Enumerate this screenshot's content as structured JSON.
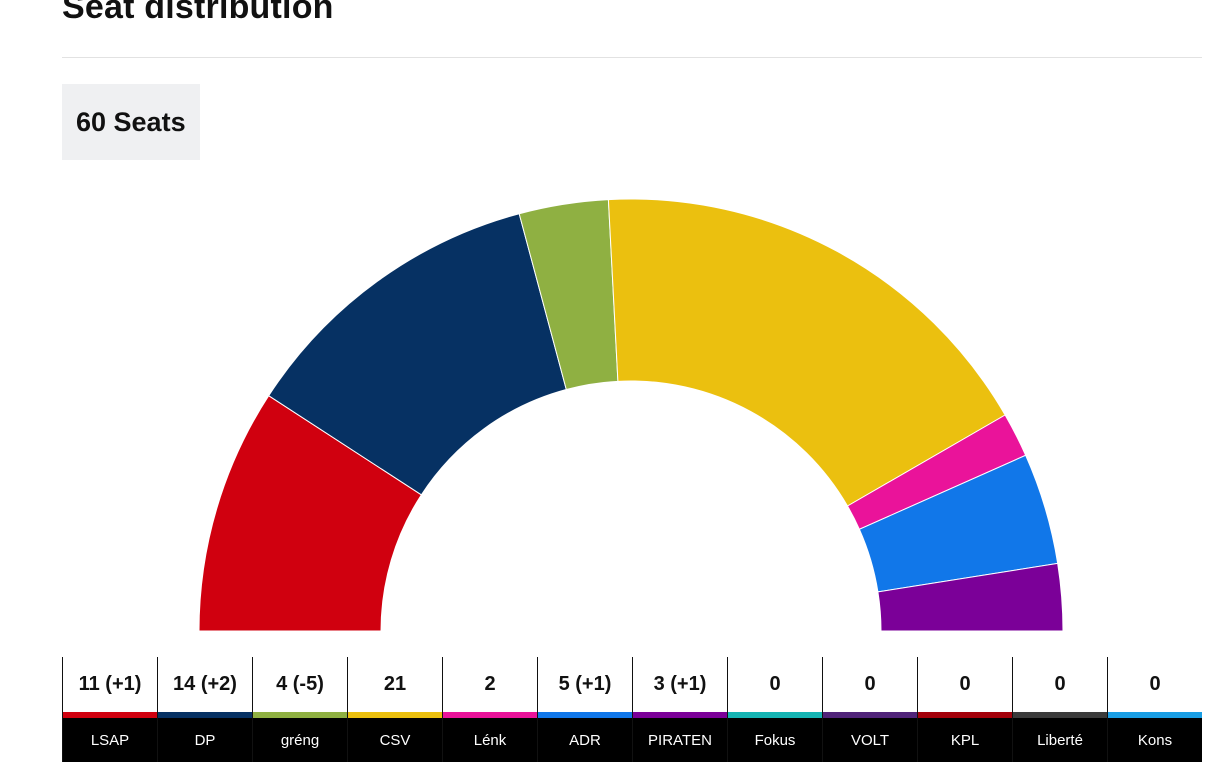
{
  "page": {
    "title": "Seat distribution",
    "seats_label": "60 Seats"
  },
  "chart_data": {
    "type": "hemicycle",
    "title": "Seat distribution",
    "total_seats": 60,
    "parties": [
      {
        "name": "LSAP",
        "seats": 11,
        "display": "11 (+1)",
        "color": "#d0000f"
      },
      {
        "name": "DP",
        "seats": 14,
        "display": "14 (+2)",
        "color": "#063163"
      },
      {
        "name": "gréng",
        "seats": 4,
        "display": "4 (-5)",
        "color": "#8fb042"
      },
      {
        "name": "CSV",
        "seats": 21,
        "display": "21",
        "color": "#ebc00f"
      },
      {
        "name": "Lénk",
        "seats": 2,
        "display": "2",
        "color": "#ea139a"
      },
      {
        "name": "ADR",
        "seats": 5,
        "display": "5 (+1)",
        "color": "#1177e9"
      },
      {
        "name": "PIRATEN",
        "seats": 3,
        "display": "3 (+1)",
        "color": "#7b0098"
      },
      {
        "name": "Fokus",
        "seats": 0,
        "display": "0",
        "color": "#15b4b3"
      },
      {
        "name": "VOLT",
        "seats": 0,
        "display": "0",
        "color": "#502379"
      },
      {
        "name": "KPL",
        "seats": 0,
        "display": "0",
        "color": "#a3000a"
      },
      {
        "name": "Liberté",
        "seats": 0,
        "display": "0",
        "color": "#3b3b3b"
      },
      {
        "name": "Kons",
        "seats": 0,
        "display": "0",
        "color": "#1a9ee4"
      }
    ]
  }
}
